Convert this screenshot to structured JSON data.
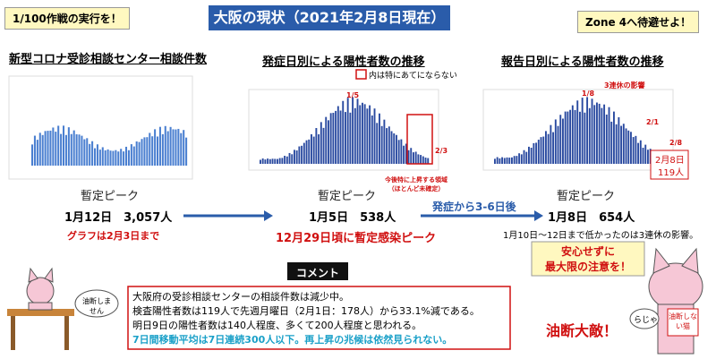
{
  "header": {
    "left_badge": "1/100作戦の実行を！",
    "title": "大阪の現状（2021年2月8日現在）",
    "right_badge": "Zone 4へ待避せよ！"
  },
  "panels": [
    {
      "title": "新型コロナ受診相談センター相談件数",
      "peak_label": "暫定ピーク",
      "peak_value": "1月12日　3,057人",
      "note": "グラフは2月3日まで"
    },
    {
      "title": "発症日別による陽性者数の推移",
      "legend": "内は特にあてにならない",
      "annotations": [
        "1/5",
        "2/3",
        "今後特に上昇する領域（ほとんど未確定）"
      ],
      "peak_label": "暫定ピーク",
      "peak_value": "1月5日　538人",
      "note": "12月29日頃に暫定感染ピーク"
    },
    {
      "title": "報告日別による陽性者数の推移",
      "annotations": [
        "1/8",
        "3連休の影響",
        "2/1",
        "2/8"
      ],
      "latest": [
        "2月8日",
        "119人"
      ],
      "peak_label": "暫定ピーク",
      "peak_value": "1月8日　654人",
      "note": "1月10日～12日まで低かったのは3連休の影響。",
      "callout": [
        "安心せずに",
        "最大限の注意を！"
      ]
    }
  ],
  "arrow_label": "発症から3-6日後",
  "comment": {
    "heading": "コメント",
    "lines": [
      "大阪府の受診相談センターの相談件数は減少中。",
      "検査陽性者数は119人で先週月曜日（2月1日：178人）から33.1%減である。",
      "明日9日の陽性者数は140人程度、多くて200人程度と思われる。",
      "7日間移動平均は7日連続300人以下。再上昇の兆候は依然見られない。"
    ]
  },
  "characters": {
    "left_bubble": "油断しません",
    "slogan": "油断大敵！",
    "right_bubble": "らじゃ",
    "right_sign": "油断しない猫"
  }
}
